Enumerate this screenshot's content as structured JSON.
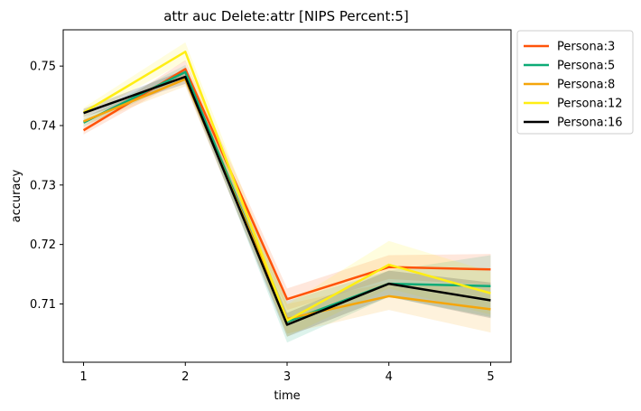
{
  "chart_data": {
    "type": "line",
    "title": "attr auc Delete:attr [NIPS Percent:5]",
    "xlabel": "time",
    "ylabel": "accuracy",
    "x": [
      1,
      2,
      3,
      4,
      5
    ],
    "xticks": [
      "1",
      "2",
      "3",
      "4",
      "5"
    ],
    "xlim": [
      0.8,
      5.2
    ],
    "ylim": [
      0.7002,
      0.7561
    ],
    "yticks": [
      "0.71",
      "0.72",
      "0.73",
      "0.74",
      "0.75"
    ],
    "grid": false,
    "legend_position": "outside-top-right",
    "series": [
      {
        "name": "Persona:3",
        "color": "#ff5309",
        "values": [
          0.7392,
          0.7495,
          0.7108,
          0.7162,
          0.7158
        ],
        "band": [
          [
            0.7385,
            0.7399
          ],
          [
            0.748,
            0.751
          ],
          [
            0.709,
            0.7126
          ],
          [
            0.7142,
            0.7182
          ],
          [
            0.7132,
            0.7184
          ]
        ]
      },
      {
        "name": "Persona:5",
        "color": "#0dab76",
        "values": [
          0.7405,
          0.749,
          0.707,
          0.7134,
          0.713
        ],
        "band": [
          [
            0.7398,
            0.7412
          ],
          [
            0.7478,
            0.7502
          ],
          [
            0.7035,
            0.7105
          ],
          [
            0.7112,
            0.7156
          ],
          [
            0.7078,
            0.7182
          ]
        ]
      },
      {
        "name": "Persona:8",
        "color": "#f5a50a",
        "values": [
          0.7407,
          0.7478,
          0.7075,
          0.7113,
          0.7091
        ],
        "band": [
          [
            0.74,
            0.7414
          ],
          [
            0.7466,
            0.749
          ],
          [
            0.705,
            0.71
          ],
          [
            0.709,
            0.7136
          ],
          [
            0.7052,
            0.713
          ]
        ]
      },
      {
        "name": "Persona:12",
        "color": "#ffee14",
        "values": [
          0.7422,
          0.7524,
          0.7072,
          0.7166,
          0.7118
        ],
        "band": [
          [
            0.7414,
            0.743
          ],
          [
            0.7508,
            0.754
          ],
          [
            0.7045,
            0.7099
          ],
          [
            0.7126,
            0.7206
          ],
          [
            0.7082,
            0.7154
          ]
        ]
      },
      {
        "name": "Persona:16",
        "color": "#000000",
        "values": [
          0.7421,
          0.7482,
          0.7065,
          0.7134,
          0.7106
        ],
        "band": [
          [
            0.7414,
            0.7428
          ],
          [
            0.747,
            0.7494
          ],
          [
            0.7045,
            0.7085
          ],
          [
            0.7112,
            0.7156
          ],
          [
            0.7076,
            0.7136
          ]
        ]
      }
    ]
  }
}
